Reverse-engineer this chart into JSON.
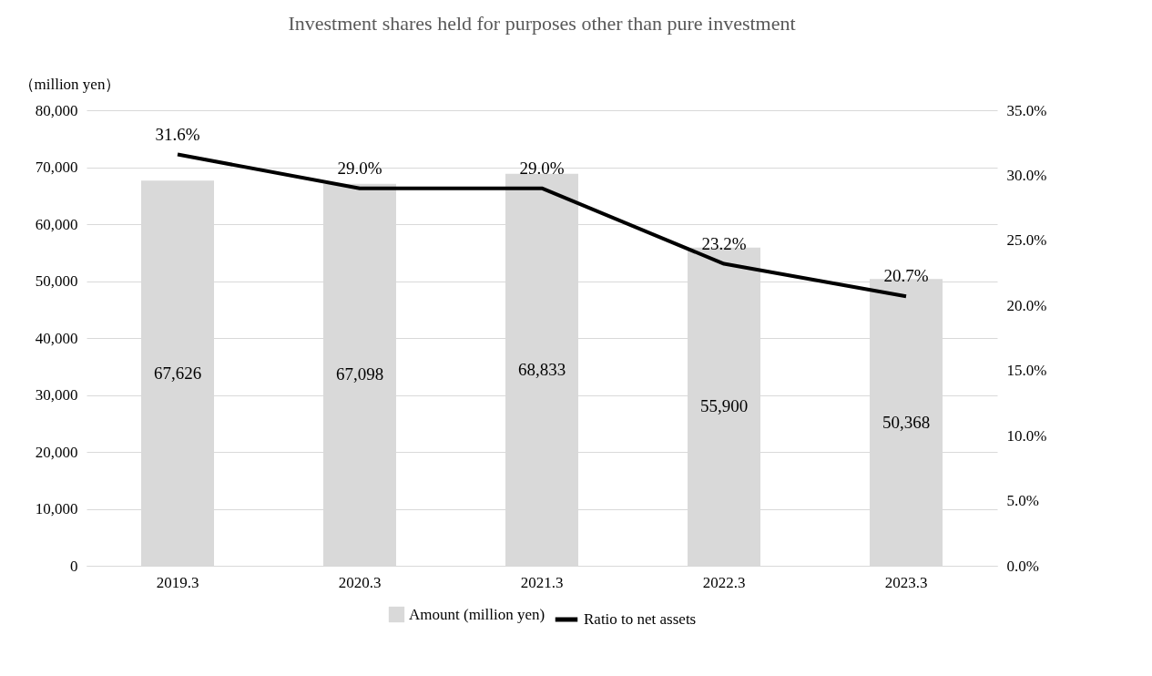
{
  "chart_data": {
    "type": "bar",
    "title": "Investment shares held for purposes other than pure investment",
    "ylabel": "（million yen）",
    "categories": [
      "2019.3",
      "2020.3",
      "2021.3",
      "2022.3",
      "2023.3"
    ],
    "series": [
      {
        "name": "Amount (million yen)",
        "color": "#d9d9d9",
        "values": [
          67626,
          67098,
          68833,
          55900,
          50368
        ],
        "value_labels": [
          "67,626",
          "67,098",
          "68,833",
          "55,900",
          "50,368"
        ]
      },
      {
        "name": "Ratio to net assets",
        "type": "line",
        "axis": "y2",
        "color": "#000000",
        "values": [
          31.6,
          29.0,
          29.0,
          23.2,
          20.7
        ],
        "value_labels": [
          "31.6%",
          "29.0%",
          "29.0%",
          "23.2%",
          "20.7%"
        ]
      }
    ],
    "ylim": [
      0,
      80000
    ],
    "yticks": [
      {
        "value": 0,
        "label": "0"
      },
      {
        "value": 10000,
        "label": "10,000"
      },
      {
        "value": 20000,
        "label": "20,000"
      },
      {
        "value": 30000,
        "label": "30,000"
      },
      {
        "value": 40000,
        "label": "40,000"
      },
      {
        "value": 50000,
        "label": "50,000"
      },
      {
        "value": 60000,
        "label": "60,000"
      },
      {
        "value": 70000,
        "label": "70,000"
      },
      {
        "value": 80000,
        "label": "80,000"
      }
    ],
    "y2lim": [
      0,
      35
    ],
    "y2ticks": [
      {
        "value": 0,
        "label": "0.0%"
      },
      {
        "value": 5,
        "label": "5.0%"
      },
      {
        "value": 10,
        "label": "10.0%"
      },
      {
        "value": 15,
        "label": "15.0%"
      },
      {
        "value": 20,
        "label": "20.0%"
      },
      {
        "value": 25,
        "label": "25.0%"
      },
      {
        "value": 30,
        "label": "30.0%"
      },
      {
        "value": 35,
        "label": "35.0%"
      }
    ],
    "grid": "y",
    "legend": "bottom",
    "marker": "none",
    "line_style": "solid"
  }
}
